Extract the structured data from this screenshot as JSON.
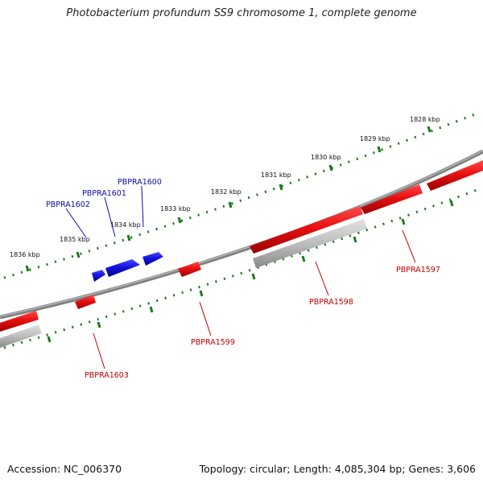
{
  "title": "Photobacterium profundum SS9 chromosome 1, complete genome",
  "footer": {
    "accession": "Accession: NC_006370",
    "summary": "Topology: circular; Length: 4,085,304 bp; Genes: 3,606"
  },
  "colors": {
    "forward_gene": "#1a1aee",
    "reverse_gene": "#ee1111",
    "rna_or_pseudo": "#b9b9b9",
    "backbone": "#7f7f7f",
    "tick": "#1a7a1a",
    "forward_label": "#0a0aa8",
    "reverse_label": "#c00000"
  },
  "scale_labels": [
    "1836 kbp",
    "1835 kbp",
    "1834 kbp",
    "1833 kbp",
    "1832 kbp",
    "1831 kbp",
    "1830 kbp",
    "1829 kbp",
    "1828 kbp"
  ],
  "genes": [
    {
      "name": "PBPRA1602",
      "strand": "forward"
    },
    {
      "name": "PBPRA1601",
      "strand": "forward"
    },
    {
      "name": "PBPRA1600",
      "strand": "forward"
    },
    {
      "name": "PBPRA1603",
      "strand": "reverse"
    },
    {
      "name": "PBPRA1599",
      "strand": "reverse"
    },
    {
      "name": "PBPRA1598",
      "strand": "reverse"
    },
    {
      "name": "PBPRA1597",
      "strand": "reverse"
    }
  ]
}
